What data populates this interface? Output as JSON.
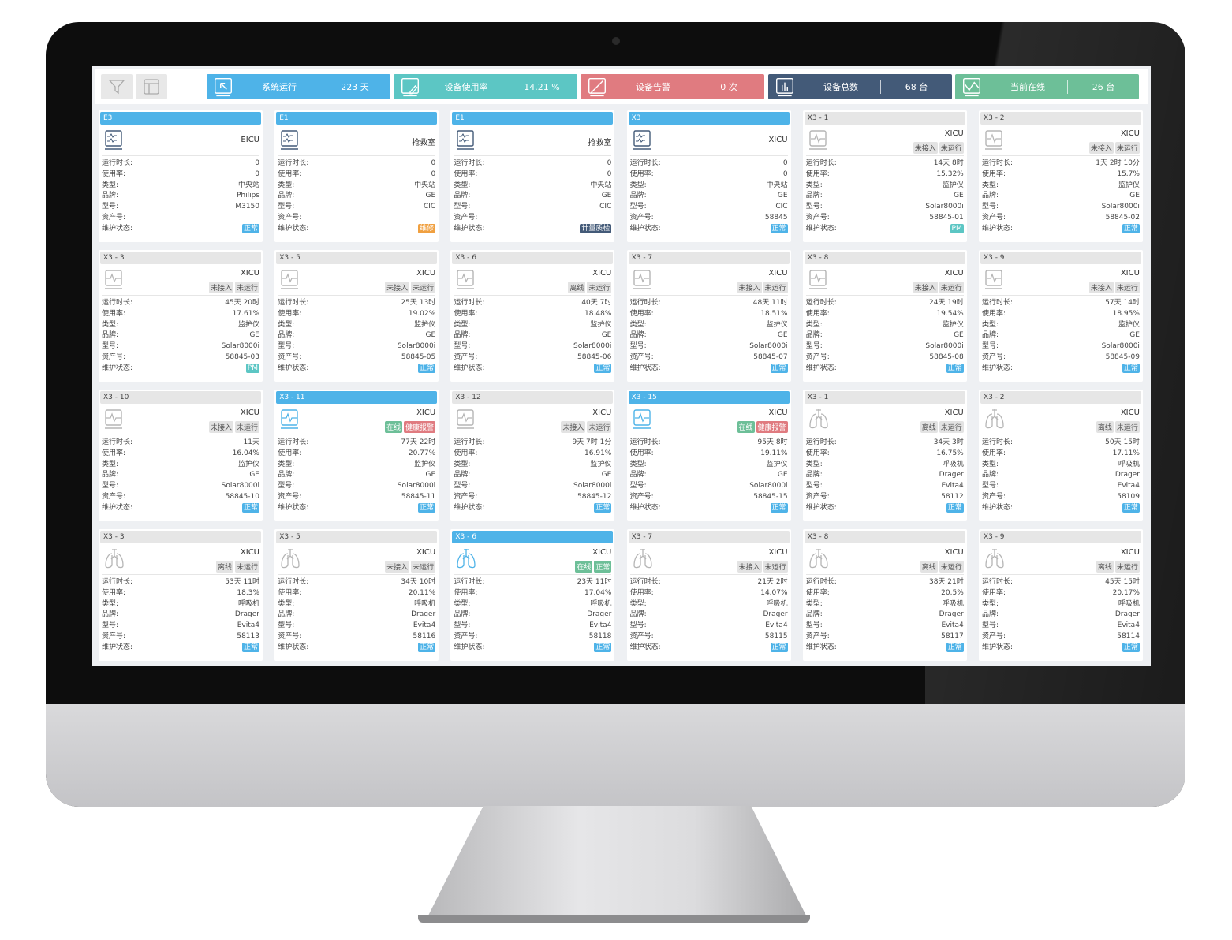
{
  "colors": {
    "blue": "#4eb3e8",
    "teal": "#5cc6c4",
    "red": "#e07b80",
    "navy": "#435a78",
    "green": "#6dbf98",
    "orange": "#f0a040",
    "grey_tag": "#e3e3e3"
  },
  "toolbar": {
    "filter_icon": "filter-icon",
    "layout_icon": "layout-icon"
  },
  "stats": [
    {
      "label": "系统运行",
      "value": "223 天",
      "color": "#4eb3e8",
      "icon": "cursor-monitor-icon"
    },
    {
      "label": "设备使用率",
      "value": "14.21 %",
      "color": "#5cc6c4",
      "icon": "edit-monitor-icon"
    },
    {
      "label": "设备告警",
      "value": "0 次",
      "color": "#e07b80",
      "icon": "alert-monitor-icon"
    },
    {
      "label": "设备总数",
      "value": "68 台",
      "color": "#435a78",
      "icon": "bar-chart-monitor-icon"
    },
    {
      "label": "当前在线",
      "value": "26 台",
      "color": "#6dbf98",
      "icon": "trend-monitor-icon"
    }
  ],
  "field_labels": [
    "运行时长:",
    "使用率:",
    "类型:",
    "品牌:",
    "型号:",
    "资产号:",
    "维护状态:"
  ],
  "status_colors": {
    "正常": "#4eb3e8",
    "维修": "#f0a040",
    "计量质检": "#435a78",
    "PM": "#5cc6c4"
  },
  "cards": [
    {
      "title": "E3",
      "kind": "central",
      "active": true,
      "location": "EICU",
      "tags": [],
      "values": [
        "0",
        "0",
        "中央站",
        "Philips",
        "M3150",
        ""
      ],
      "status": "正常"
    },
    {
      "title": "E1",
      "kind": "central",
      "active": true,
      "location": "抢救室",
      "tags": [],
      "values": [
        "0",
        "0",
        "中央站",
        "GE",
        "CIC",
        ""
      ],
      "status": "维修"
    },
    {
      "title": "E1",
      "kind": "central",
      "active": true,
      "location": "抢救室",
      "tags": [],
      "values": [
        "0",
        "0",
        "中央站",
        "GE",
        "CIC",
        ""
      ],
      "status": "计量质检"
    },
    {
      "title": "X3",
      "kind": "central",
      "active": true,
      "location": "XICU",
      "tags": [],
      "values": [
        "0",
        "0",
        "中央站",
        "GE",
        "CIC",
        "58845"
      ],
      "status": "正常"
    },
    {
      "title": "X3 - 1",
      "kind": "monitor",
      "active": false,
      "location": "XICU",
      "tags": [
        "未接入",
        "未运行"
      ],
      "values": [
        "14天 8时",
        "15.32%",
        "监护仪",
        "GE",
        "Solar8000i",
        "58845-01"
      ],
      "status": "PM"
    },
    {
      "title": "X3 - 2",
      "kind": "monitor",
      "active": false,
      "location": "XICU",
      "tags": [
        "未接入",
        "未运行"
      ],
      "values": [
        "1天 2时 10分",
        "15.7%",
        "监护仪",
        "GE",
        "Solar8000i",
        "58845-02"
      ],
      "status": "正常"
    },
    {
      "title": "X3 - 3",
      "kind": "monitor",
      "active": false,
      "location": "XICU",
      "tags": [
        "未接入",
        "未运行"
      ],
      "values": [
        "45天 20时",
        "17.61%",
        "监护仪",
        "GE",
        "Solar8000i",
        "58845-03"
      ],
      "status": "PM"
    },
    {
      "title": "X3 - 5",
      "kind": "monitor",
      "active": false,
      "location": "XICU",
      "tags": [
        "未接入",
        "未运行"
      ],
      "values": [
        "25天 13时",
        "19.02%",
        "监护仪",
        "GE",
        "Solar8000i",
        "58845-05"
      ],
      "status": "正常"
    },
    {
      "title": "X3 - 6",
      "kind": "monitor",
      "active": false,
      "location": "XICU",
      "tags": [
        "离线",
        "未运行"
      ],
      "values": [
        "40天 7时",
        "18.48%",
        "监护仪",
        "GE",
        "Solar8000i",
        "58845-06"
      ],
      "status": "正常"
    },
    {
      "title": "X3 - 7",
      "kind": "monitor",
      "active": false,
      "location": "XICU",
      "tags": [
        "未接入",
        "未运行"
      ],
      "values": [
        "48天 11时",
        "18.51%",
        "监护仪",
        "GE",
        "Solar8000i",
        "58845-07"
      ],
      "status": "正常"
    },
    {
      "title": "X3 - 8",
      "kind": "monitor",
      "active": false,
      "location": "XICU",
      "tags": [
        "未接入",
        "未运行"
      ],
      "values": [
        "24天 19时",
        "19.54%",
        "监护仪",
        "GE",
        "Solar8000i",
        "58845-08"
      ],
      "status": "正常"
    },
    {
      "title": "X3 - 9",
      "kind": "monitor",
      "active": false,
      "location": "XICU",
      "tags": [
        "未接入",
        "未运行"
      ],
      "values": [
        "57天 14时",
        "18.95%",
        "监护仪",
        "GE",
        "Solar8000i",
        "58845-09"
      ],
      "status": "正常"
    },
    {
      "title": "X3 - 10",
      "kind": "monitor",
      "active": false,
      "location": "XICU",
      "tags": [
        "未接入",
        "未运行"
      ],
      "values": [
        "11天",
        "16.04%",
        "监护仪",
        "GE",
        "Solar8000i",
        "58845-10"
      ],
      "status": "正常"
    },
    {
      "title": "X3 - 11",
      "kind": "monitor",
      "active": true,
      "location": "XICU",
      "tags": [
        "在线",
        "健康报警"
      ],
      "values": [
        "77天 22时",
        "20.77%",
        "监护仪",
        "GE",
        "Solar8000i",
        "58845-11"
      ],
      "status": "正常"
    },
    {
      "title": "X3 - 12",
      "kind": "monitor",
      "active": false,
      "location": "XICU",
      "tags": [
        "未接入",
        "未运行"
      ],
      "values": [
        "9天 7时 1分",
        "16.91%",
        "监护仪",
        "GE",
        "Solar8000i",
        "58845-12"
      ],
      "status": "正常"
    },
    {
      "title": "X3 - 15",
      "kind": "monitor",
      "active": true,
      "location": "XICU",
      "tags": [
        "在线",
        "健康报警"
      ],
      "values": [
        "95天 8时",
        "19.11%",
        "监护仪",
        "GE",
        "Solar8000i",
        "58845-15"
      ],
      "status": "正常"
    },
    {
      "title": "X3 - 1",
      "kind": "ventilator",
      "active": false,
      "location": "XICU",
      "tags": [
        "离线",
        "未运行"
      ],
      "values": [
        "34天 3时",
        "16.75%",
        "呼吸机",
        "Drager",
        "Evita4",
        "58112"
      ],
      "status": "正常"
    },
    {
      "title": "X3 - 2",
      "kind": "ventilator",
      "active": false,
      "location": "XICU",
      "tags": [
        "离线",
        "未运行"
      ],
      "values": [
        "50天 15时",
        "17.11%",
        "呼吸机",
        "Drager",
        "Evita4",
        "58109"
      ],
      "status": "正常"
    },
    {
      "title": "X3 - 3",
      "kind": "ventilator",
      "active": false,
      "location": "XICU",
      "tags": [
        "离线",
        "未运行"
      ],
      "values": [
        "53天 11时",
        "18.3%",
        "呼吸机",
        "Drager",
        "Evita4",
        "58113"
      ],
      "status": "正常"
    },
    {
      "title": "X3 - 5",
      "kind": "ventilator",
      "active": false,
      "location": "XICU",
      "tags": [
        "未接入",
        "未运行"
      ],
      "values": [
        "34天 10时",
        "20.11%",
        "呼吸机",
        "Drager",
        "Evita4",
        "58116"
      ],
      "status": "正常"
    },
    {
      "title": "X3 - 6",
      "kind": "ventilator",
      "active": true,
      "location": "XICU",
      "tags": [
        "在线",
        "正常"
      ],
      "values": [
        "23天 11时",
        "17.04%",
        "呼吸机",
        "Drager",
        "Evita4",
        "58118"
      ],
      "status": "正常"
    },
    {
      "title": "X3 - 7",
      "kind": "ventilator",
      "active": false,
      "location": "XICU",
      "tags": [
        "未接入",
        "未运行"
      ],
      "values": [
        "21天 2时",
        "14.07%",
        "呼吸机",
        "Drager",
        "Evita4",
        "58115"
      ],
      "status": "正常"
    },
    {
      "title": "X3 - 8",
      "kind": "ventilator",
      "active": false,
      "location": "XICU",
      "tags": [
        "离线",
        "未运行"
      ],
      "values": [
        "38天 21时",
        "20.5%",
        "呼吸机",
        "Drager",
        "Evita4",
        "58117"
      ],
      "status": "正常"
    },
    {
      "title": "X3 - 9",
      "kind": "ventilator",
      "active": false,
      "location": "XICU",
      "tags": [
        "离线",
        "未运行"
      ],
      "values": [
        "45天 15时",
        "20.17%",
        "呼吸机",
        "Drager",
        "Evita4",
        "58114"
      ],
      "status": "正常"
    }
  ]
}
